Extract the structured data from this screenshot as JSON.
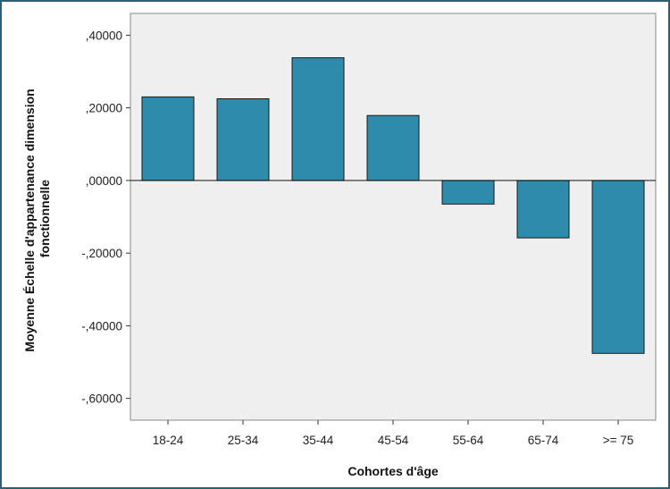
{
  "chart_data": {
    "type": "bar",
    "title": "",
    "xlabel": "Cohortes d'âge",
    "ylabel_lines": [
      "Moyenne Échelle d'appartenance dimension",
      "fonctionnelle"
    ],
    "categories": [
      "18-24",
      "25-34",
      "35-44",
      "45-54",
      "55-64",
      "65-74",
      ">= 75"
    ],
    "values": [
      0.23,
      0.225,
      0.338,
      0.179,
      -0.065,
      -0.158,
      -0.476
    ],
    "ylim": [
      -0.66,
      0.46
    ],
    "y_ticks": [
      0.4,
      0.2,
      0.0,
      -0.2,
      -0.4,
      -0.6
    ],
    "y_tick_labels": [
      ",40000",
      ",20000",
      ",00000",
      "-,20000",
      "-,40000",
      "-,60000"
    ],
    "grid": false,
    "colors": {
      "bar_fill": "#2e8bab",
      "bar_stroke": "#1a1a1a",
      "plot_background": "#efefef",
      "frame": "#2f5f73"
    }
  }
}
